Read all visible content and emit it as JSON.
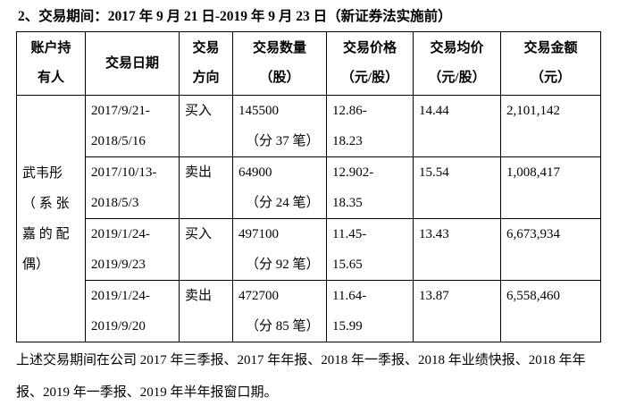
{
  "heading": "2、交易期间：2017 年 9 月 21 日-2019 年 9 月 23 日（新证券法实施前）",
  "table": {
    "header": [
      [
        "账户持",
        "有人"
      ],
      [
        "交易日期"
      ],
      [
        "交易",
        "方向"
      ],
      [
        "交易数量",
        "（股）"
      ],
      [
        "交易价格",
        "（元/股）"
      ],
      [
        "交易均价",
        "（元/股）"
      ],
      [
        "交易金额",
        "（元）"
      ]
    ],
    "holder": [
      "武韦彤",
      "（ 系 张",
      "嘉 的 配",
      "偶）"
    ],
    "rows": [
      {
        "date": [
          "2017/9/21-",
          "2018/5/16"
        ],
        "direction": "买入",
        "quantity": "145500",
        "count": "（分 37 笔）",
        "price": [
          "12.86-",
          "18.23"
        ],
        "avg": "14.44",
        "amount": "2,101,142"
      },
      {
        "date": [
          "2017/10/13-",
          "2018/5/3"
        ],
        "direction": "卖出",
        "quantity": "64900",
        "count": "（分 24 笔）",
        "price": [
          "12.902-",
          "18.35"
        ],
        "avg": "15.54",
        "amount": "1,008,417"
      },
      {
        "date": [
          "2019/1/24-",
          "2019/9/23"
        ],
        "direction": "买入",
        "quantity": "497100",
        "count": "（分 92 笔）",
        "price": [
          "11.45-",
          "15.65"
        ],
        "avg": "13.43",
        "amount": "6,673,934"
      },
      {
        "date": [
          "2019/1/24-",
          "2019/9/20"
        ],
        "direction": "卖出",
        "quantity": "472700",
        "count": "（分 85 笔）",
        "price": [
          "11.64-",
          "15.99"
        ],
        "avg": "13.87",
        "amount": "6,558,460"
      }
    ]
  },
  "note": "上述交易期间在公司 2017 年三季报、2017 年年报、2018 年一季报、2018 年业绩快报、2018 年年报、2019 年一季报、2019 年半年报窗口期。"
}
